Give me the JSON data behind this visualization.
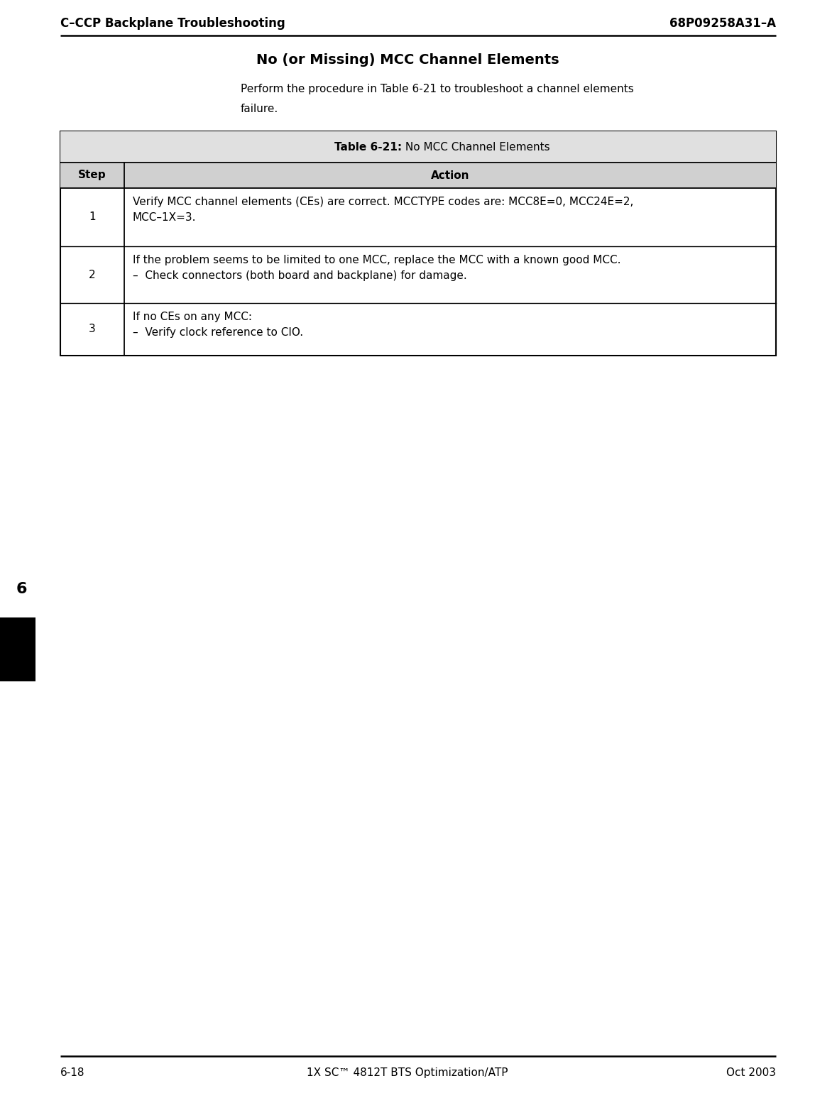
{
  "page_width": 11.48,
  "page_height": 15.4,
  "dpi": 100,
  "bg_color": "#ffffff",
  "header_left": "C–CCP Backplane Troubleshooting",
  "header_right": "68P09258A31–A",
  "footer_left": "6-18",
  "footer_center": "1X SC™ 4812T BTS Optimization/ATP",
  "footer_right": "Oct 2003",
  "section_title": "No (or Missing) MCC Channel Elements",
  "intro_line1": "Perform the procedure in Table 6-21 to troubleshoot a channel elements",
  "intro_line2": "failure.",
  "table_title_bold": "Table 6-21:",
  "table_title_normal": " No MCC Channel Elements",
  "col_header_step": "Step",
  "col_header_action": "Action",
  "rows": [
    {
      "step": "1",
      "action_lines": [
        "Verify MCC channel elements (CEs) are correct. MCCTYPE codes are: MCC8E=0, MCC24E=2,",
        "MCC–1X=3."
      ]
    },
    {
      "step": "2",
      "action_lines": [
        "If the problem seems to be limited to one MCC, replace the MCC with a known good MCC.",
        "–  Check connectors (both board and backplane) for damage."
      ]
    },
    {
      "step": "3",
      "action_lines": [
        "If no CEs on any MCC:",
        "–  Verify clock reference to CIO."
      ]
    }
  ],
  "side_marker_color": "#000000",
  "side_number": "6",
  "table_border_color": "#000000",
  "header_font_size": 12,
  "title_font_size": 14,
  "body_font_size": 11,
  "table_title_font_size": 11,
  "footer_font_size": 11,
  "side_num_font_size": 16
}
